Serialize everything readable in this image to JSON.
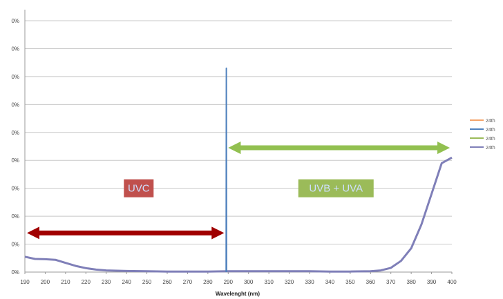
{
  "chart_data": {
    "type": "line",
    "title": "",
    "xlabel": "Wavelenght (nm)",
    "ylabel": "",
    "x_ticks": [
      190,
      200,
      210,
      220,
      230,
      240,
      250,
      260,
      270,
      280,
      290,
      300,
      310,
      320,
      330,
      340,
      350,
      360,
      370,
      380,
      390,
      400
    ],
    "xlim": [
      190,
      400
    ],
    "y_tick_labels": [
      "0%",
      "0%",
      "0%",
      "0%",
      "0%",
      "0%",
      "0%",
      "0%",
      "0%",
      "0%"
    ],
    "ylim": [
      0,
      9
    ],
    "grid": true,
    "legend_position": "right",
    "legend": [
      "24th",
      "24th",
      "24th",
      "24th"
    ],
    "series": [
      {
        "name": "24th",
        "color": "#7f7fb8",
        "x": [
          190,
          195,
          200,
          205,
          210,
          215,
          220,
          225,
          230,
          240,
          250,
          260,
          270,
          280,
          290,
          300,
          310,
          320,
          330,
          340,
          350,
          360,
          365,
          370,
          375,
          380,
          385,
          390,
          395,
          400
        ],
        "y": [
          0.55,
          0.47,
          0.46,
          0.44,
          0.33,
          0.22,
          0.14,
          0.09,
          0.06,
          0.04,
          0.03,
          0.02,
          0.02,
          0.02,
          0.03,
          0.03,
          0.03,
          0.03,
          0.03,
          0.02,
          0.02,
          0.03,
          0.06,
          0.15,
          0.4,
          0.85,
          1.7,
          2.8,
          3.9,
          4.1
        ]
      },
      {
        "name": "24th",
        "color": "#4f81bd",
        "x": [
          289,
          289.1,
          289.2
        ],
        "y": [
          0,
          7.3,
          0
        ]
      }
    ],
    "annotations": [
      {
        "text": "UVC",
        "x": 246,
        "y": 3.0,
        "box_color": "#c0504d"
      },
      {
        "text": "UVB + UVA",
        "x": 343,
        "y": 3.0,
        "box_color": "#9bbb59"
      }
    ],
    "arrows": [
      {
        "from": 190,
        "to": 289,
        "y": 1.4,
        "color": "#a00000"
      },
      {
        "from": 289,
        "to": 400,
        "y": 4.45,
        "color": "#92c050"
      }
    ],
    "legend_colors": [
      "#f4a46a",
      "#4f81bd",
      "#9bbb59",
      "#7f7fb8"
    ]
  }
}
